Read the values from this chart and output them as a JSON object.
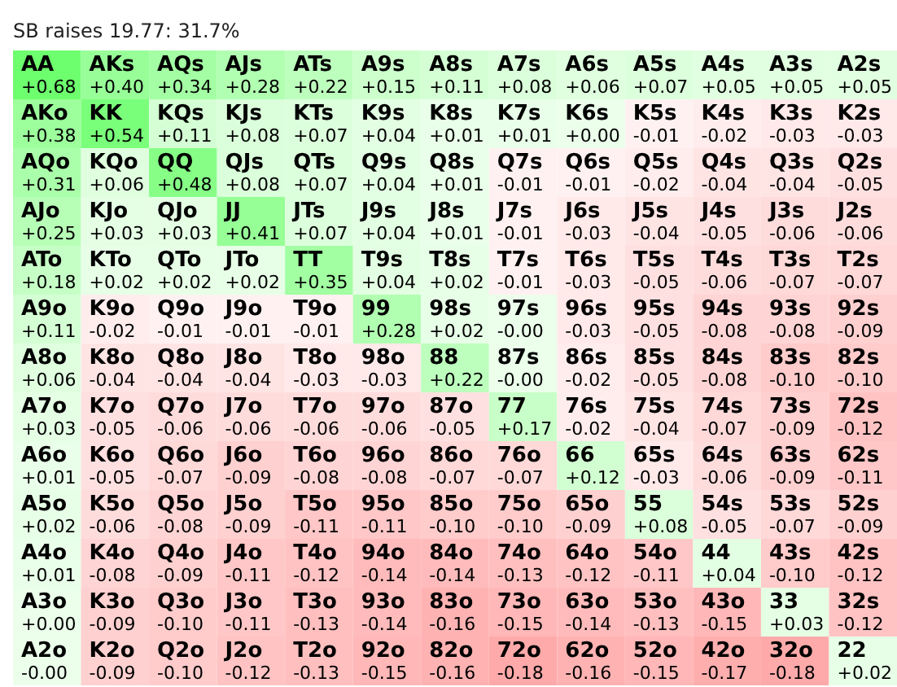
{
  "chart_data": {
    "type": "heatmap",
    "title": "SB raises 19.77: 31.7%",
    "categories": [
      null,
      null,
      null,
      null,
      null,
      null,
      null,
      null,
      null,
      null,
      null,
      null,
      null
    ],
    "y_categories": [
      null,
      null,
      null,
      null,
      null,
      null,
      null,
      null,
      null,
      null,
      null,
      null,
      null
    ],
    "cells": [
      [
        0.68,
        0.4,
        0.34,
        0.28,
        0.22,
        0.15,
        0.11,
        0.08,
        0.06,
        0.07,
        0.05,
        0.05,
        0.05
      ],
      [
        0.38,
        0.54,
        0.11,
        0.08,
        0.07,
        0.04,
        0.01,
        0.01,
        0.0,
        -0.01,
        -0.02,
        -0.03,
        -0.03
      ],
      [
        0.31,
        0.06,
        0.48,
        0.08,
        0.07,
        0.04,
        0.01,
        -0.01,
        -0.01,
        -0.02,
        -0.04,
        -0.04,
        -0.05
      ],
      [
        0.25,
        0.03,
        0.03,
        0.41,
        0.07,
        0.04,
        0.01,
        -0.01,
        -0.03,
        -0.04,
        -0.05,
        -0.06,
        -0.06
      ],
      [
        0.18,
        0.02,
        0.02,
        0.02,
        0.35,
        0.04,
        0.02,
        -0.01,
        -0.03,
        -0.05,
        -0.06,
        -0.07,
        -0.07
      ],
      [
        0.11,
        -0.02,
        -0.01,
        -0.01,
        -0.01,
        0.28,
        0.02,
        -0.0,
        -0.03,
        -0.05,
        -0.08,
        -0.08,
        -0.09
      ],
      [
        0.06,
        -0.04,
        -0.04,
        -0.04,
        -0.03,
        -0.03,
        0.22,
        -0.0,
        -0.02,
        -0.05,
        -0.08,
        -0.1,
        -0.1
      ],
      [
        0.03,
        -0.05,
        -0.06,
        -0.06,
        -0.06,
        -0.06,
        -0.05,
        0.17,
        -0.02,
        -0.04,
        -0.07,
        -0.09,
        -0.12
      ],
      [
        0.01,
        -0.05,
        -0.07,
        -0.09,
        -0.08,
        -0.08,
        -0.07,
        -0.07,
        0.12,
        -0.03,
        -0.06,
        -0.09,
        -0.11
      ],
      [
        0.02,
        -0.06,
        -0.08,
        -0.09,
        -0.11,
        -0.11,
        -0.1,
        -0.1,
        -0.09,
        0.08,
        -0.05,
        -0.07,
        -0.09
      ],
      [
        0.01,
        -0.08,
        -0.09,
        -0.11,
        -0.12,
        -0.14,
        -0.14,
        -0.13,
        -0.12,
        -0.11,
        0.04,
        -0.1,
        -0.12
      ],
      [
        0.0,
        -0.09,
        -0.1,
        -0.11,
        -0.13,
        -0.14,
        -0.16,
        -0.15,
        -0.14,
        -0.13,
        -0.15,
        0.03,
        -0.12
      ],
      [
        -0.0,
        -0.09,
        -0.1,
        -0.12,
        -0.13,
        -0.15,
        -0.16,
        -0.18,
        -0.16,
        -0.15,
        -0.17,
        -0.18,
        0.02
      ]
    ],
    "cell_labels": [
      [
        "+0.68",
        "+0.40",
        "+0.34",
        "+0.28",
        "+0.22",
        "+0.15",
        "+0.11",
        "+0.08",
        "+0.06",
        "+0.07",
        "+0.05",
        "+0.05",
        "+0.05"
      ],
      [
        "+0.38",
        "+0.54",
        "+0.11",
        "+0.08",
        "+0.07",
        "+0.04",
        "+0.01",
        "+0.01",
        "+0.00",
        "-0.01",
        "-0.02",
        "-0.03",
        "-0.03"
      ],
      [
        "+0.31",
        "+0.06",
        "+0.48",
        "+0.08",
        "+0.07",
        "+0.04",
        "+0.01",
        "-0.01",
        "-0.01",
        "-0.02",
        "-0.04",
        "-0.04",
        "-0.05"
      ],
      [
        "+0.25",
        "+0.03",
        "+0.03",
        "+0.41",
        "+0.07",
        "+0.04",
        "+0.01",
        "-0.01",
        "-0.03",
        "-0.04",
        "-0.05",
        "-0.06",
        "-0.06"
      ],
      [
        "+0.18",
        "+0.02",
        "+0.02",
        "+0.02",
        "+0.35",
        "+0.04",
        "+0.02",
        "-0.01",
        "-0.03",
        "-0.05",
        "-0.06",
        "-0.07",
        "-0.07"
      ],
      [
        "+0.11",
        "-0.02",
        "-0.01",
        "-0.01",
        "-0.01",
        "+0.28",
        "+0.02",
        "-0.00",
        "-0.03",
        "-0.05",
        "-0.08",
        "-0.08",
        "-0.09"
      ],
      [
        "+0.06",
        "-0.04",
        "-0.04",
        "-0.04",
        "-0.03",
        "-0.03",
        "+0.22",
        "-0.00",
        "-0.02",
        "-0.05",
        "-0.08",
        "-0.10",
        "-0.10"
      ],
      [
        "+0.03",
        "-0.05",
        "-0.06",
        "-0.06",
        "-0.06",
        "-0.06",
        "-0.05",
        "+0.17",
        "-0.02",
        "-0.04",
        "-0.07",
        "-0.09",
        "-0.12"
      ],
      [
        "+0.01",
        "-0.05",
        "-0.07",
        "-0.09",
        "-0.08",
        "-0.08",
        "-0.07",
        "-0.07",
        "+0.12",
        "-0.03",
        "-0.06",
        "-0.09",
        "-0.11"
      ],
      [
        "+0.02",
        "-0.06",
        "-0.08",
        "-0.09",
        "-0.11",
        "-0.11",
        "-0.10",
        "-0.10",
        "-0.09",
        "+0.08",
        "-0.05",
        "-0.07",
        "-0.09"
      ],
      [
        "+0.01",
        "-0.08",
        "-0.09",
        "-0.11",
        "-0.12",
        "-0.14",
        "-0.14",
        "-0.13",
        "-0.12",
        "-0.11",
        "+0.04",
        "-0.10",
        "-0.12"
      ],
      [
        "+0.00",
        "-0.09",
        "-0.10",
        "-0.11",
        "-0.13",
        "-0.14",
        "-0.16",
        "-0.15",
        "-0.14",
        "-0.13",
        "-0.15",
        "+0.03",
        "-0.12"
      ],
      [
        "-0.00",
        "-0.09",
        "-0.10",
        "-0.12",
        "-0.13",
        "-0.15",
        "-0.16",
        "-0.18",
        "-0.16",
        "-0.15",
        "-0.17",
        "-0.18",
        "+0.02"
      ]
    ],
    "annotations": [
      "AA",
      "AKs",
      "AQs",
      "AJs",
      "ATs",
      "A9s",
      "A8s",
      "A7s",
      "A6s",
      "A5s",
      "A4s",
      "A3s",
      "A2s",
      "AKo",
      "KK",
      "KQs",
      "KJs",
      "KTs",
      "K9s",
      "K8s",
      "K7s",
      "K6s",
      "K5s",
      "K4s",
      "K3s",
      "K2s",
      "AQo",
      "KQo",
      "QQ",
      "QJs",
      "QTs",
      "Q9s",
      "Q8s",
      "Q7s",
      "Q6s",
      "Q5s",
      "Q4s",
      "Q3s",
      "Q2s",
      "AJo",
      "KJo",
      "QJo",
      "JJ",
      "JTs",
      "J9s",
      "J8s",
      "J7s",
      "J6s",
      "J5s",
      "J4s",
      "J3s",
      "J2s",
      "ATo",
      "KTo",
      "QTo",
      "JTo",
      "TT",
      "T9s",
      "T8s",
      "T7s",
      "T6s",
      "T5s",
      "T4s",
      "T3s",
      "T2s",
      "A9o",
      "K9o",
      "Q9o",
      "J9o",
      "T9o",
      "99",
      "98s",
      "97s",
      "96s",
      "95s",
      "94s",
      "93s",
      "92s",
      "A8o",
      "K8o",
      "Q8o",
      "J8o",
      "T8o",
      "98o",
      "88",
      "87s",
      "86s",
      "85s",
      "84s",
      "83s",
      "82s",
      "A7o",
      "K7o",
      "Q7o",
      "J7o",
      "T7o",
      "97o",
      "87o",
      "77",
      "76s",
      "75s",
      "74s",
      "73s",
      "72s",
      "A6o",
      "K6o",
      "Q6o",
      "J6o",
      "T6o",
      "96o",
      "86o",
      "76o",
      "66",
      "65s",
      "64s",
      "63s",
      "62s",
      "A5o",
      "K5o",
      "Q5o",
      "J5o",
      "T5o",
      "95o",
      "85o",
      "75o",
      "65o",
      "55",
      "54s",
      "53s",
      "52s",
      "A4o",
      "K4o",
      "Q4o",
      "J4o",
      "T4o",
      "94o",
      "84o",
      "74o",
      "64o",
      "54o",
      "44",
      "43s",
      "42s",
      "A3o",
      "K3o",
      "Q3o",
      "J3o",
      "T3o",
      "93o",
      "83o",
      "73o",
      "63o",
      "53o",
      "43o",
      "33",
      "32s",
      "A2o",
      "K2o",
      "Q2o",
      "J2o",
      "T2o",
      "92o",
      "82o",
      "72o",
      "62o",
      "52o",
      "42o",
      "32o",
      "22"
    ]
  }
}
